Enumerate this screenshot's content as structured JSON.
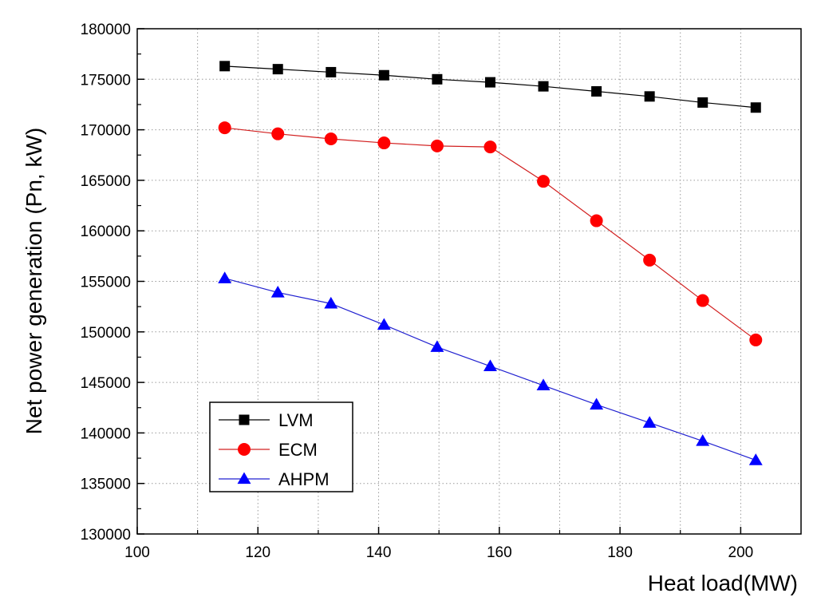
{
  "chart_data": {
    "type": "line",
    "title": "",
    "xlabel": "Heat load(MW)",
    "ylabel": "Net power generation (Pn, kW)",
    "xlim": [
      100,
      210
    ],
    "ylim": [
      130000,
      180000
    ],
    "xticks": [
      100,
      120,
      140,
      160,
      180,
      200
    ],
    "yticks": [
      130000,
      135000,
      140000,
      145000,
      150000,
      155000,
      160000,
      165000,
      170000,
      175000,
      180000
    ],
    "grid": true,
    "legend_position": "bottom-left",
    "x": [
      114.5,
      123.3,
      132.1,
      140.9,
      149.7,
      158.5,
      167.3,
      176.1,
      184.9,
      193.7,
      202.5
    ],
    "series": [
      {
        "name": "LVM",
        "marker": "square",
        "color": "#000000",
        "marker_color": "#000000",
        "values": [
          176300,
          176000,
          175700,
          175400,
          175000,
          174700,
          174300,
          173800,
          173300,
          172700,
          172200
        ]
      },
      {
        "name": "ECM",
        "marker": "circle",
        "color": "#d22020",
        "marker_color": "#ff0000",
        "values": [
          170200,
          169600,
          169100,
          168700,
          168400,
          168300,
          164900,
          161000,
          157100,
          153100,
          149200
        ]
      },
      {
        "name": "AHPM",
        "marker": "triangle",
        "color": "#2020d0",
        "marker_color": "#0000ff",
        "values": [
          155300,
          153900,
          152800,
          150700,
          148500,
          146600,
          144700,
          142800,
          141000,
          139200,
          137300
        ]
      }
    ]
  }
}
